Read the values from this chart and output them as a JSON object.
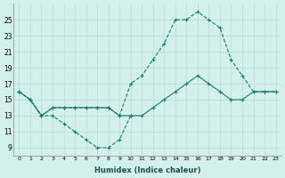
{
  "xlabel": "Humidex (Indice chaleur)",
  "bg_color": "#d4f0ec",
  "line_color": "#1a7a6e",
  "grid_color": "#b8ddd8",
  "xlim": [
    -0.5,
    23.5
  ],
  "ylim": [
    8,
    27
  ],
  "xticks": [
    0,
    1,
    2,
    3,
    4,
    5,
    6,
    7,
    8,
    9,
    10,
    11,
    12,
    13,
    14,
    15,
    16,
    17,
    18,
    19,
    20,
    21,
    22,
    23
  ],
  "yticks": [
    9,
    11,
    13,
    15,
    17,
    19,
    21,
    23,
    25
  ],
  "series1_x": [
    0,
    1,
    2,
    3,
    4,
    5,
    6,
    7,
    8,
    9,
    10
  ],
  "series1_y": [
    16,
    15,
    13,
    13,
    12,
    11,
    10,
    9,
    9,
    10,
    13
  ],
  "series2_x": [
    0,
    1,
    2,
    3,
    4,
    5,
    6,
    7,
    8,
    9,
    10,
    11,
    12,
    13,
    14,
    15,
    16,
    17,
    18,
    19,
    20,
    21,
    22,
    23
  ],
  "series2_y": [
    16,
    15,
    13,
    14,
    14,
    14,
    14,
    14,
    14,
    13,
    13,
    13,
    14,
    15,
    16,
    17,
    18,
    17,
    16,
    15,
    15,
    16,
    16,
    16
  ],
  "series3_x": [
    0,
    1,
    2,
    3,
    4,
    5,
    6,
    7,
    8,
    9,
    10,
    11,
    12,
    13,
    14,
    15,
    16,
    17,
    18,
    19,
    20,
    21,
    22,
    23
  ],
  "series3_y": [
    16,
    15,
    13,
    14,
    14,
    14,
    14,
    14,
    14,
    13,
    17,
    18,
    20,
    22,
    25,
    25,
    26,
    25,
    24,
    20,
    18,
    16,
    16,
    16
  ]
}
